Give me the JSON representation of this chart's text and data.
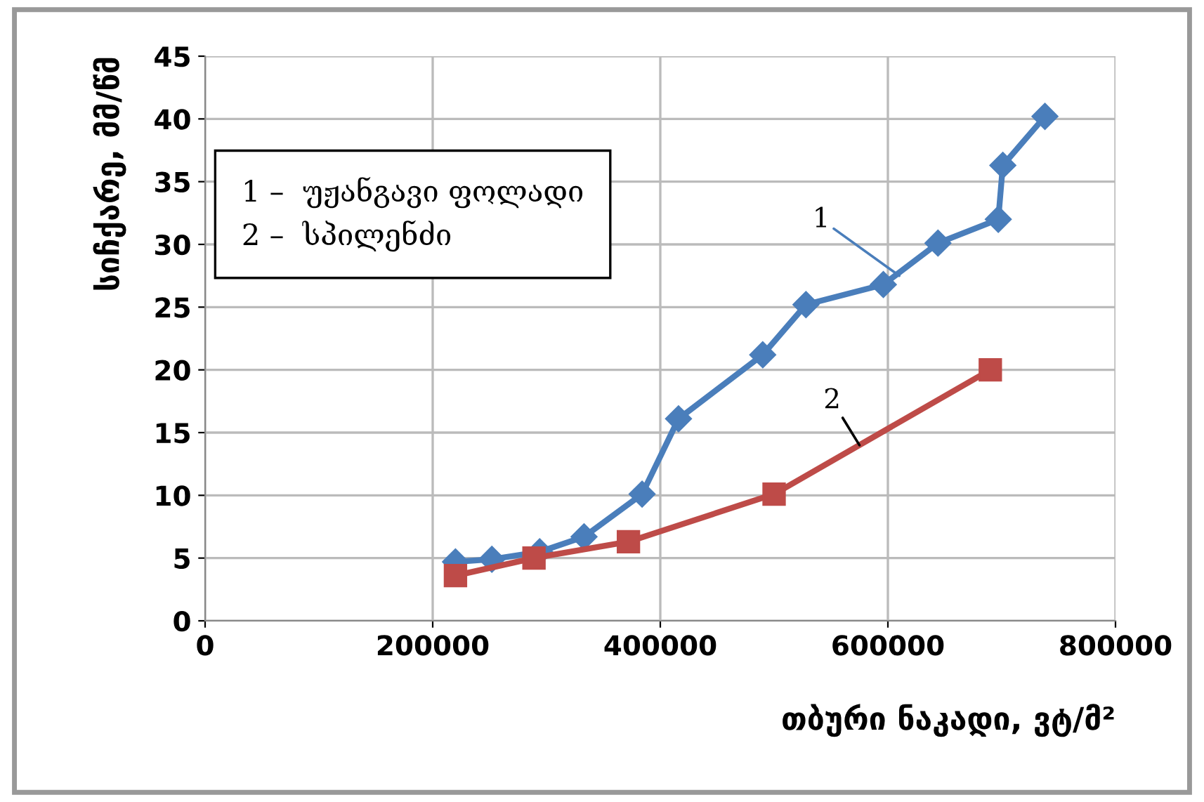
{
  "chart_data": {
    "type": "line",
    "xlabel": "თბური ნაკადი, ვტ/მ²",
    "ylabel": "სიჩქარე, მმ/წმ",
    "annotations": [
      "1 –  უჟანგავი ფოლადი\n2 –  სპილენძი",
      {
        "text": "1",
        "x": 610000,
        "y": 27.5
      },
      {
        "text": "2",
        "x": 575000,
        "y": 14.0
      }
    ],
    "series": [
      {
        "color": "#4a7ebb",
        "marker": "diamond",
        "x": [
          220000,
          252000,
          294000,
          333000,
          384000,
          416000,
          490000,
          528000,
          596000,
          644000,
          697000,
          701000,
          738000
        ],
        "values": [
          4.7,
          4.9,
          5.5,
          6.7,
          10.1,
          16.1,
          21.2,
          25.2,
          26.8,
          30.1,
          32.0,
          36.3,
          40.2
        ]
      },
      {
        "color": "#be4b48",
        "marker": "square",
        "x": [
          220000,
          289000,
          372000,
          500000,
          690000
        ],
        "values": [
          3.6,
          5.0,
          6.3,
          10.1,
          20.0
        ]
      }
    ],
    "xlim": [
      0,
      800000
    ],
    "xticks": [
      0,
      200000,
      400000,
      600000,
      800000
    ],
    "ylim": [
      0,
      45
    ],
    "yticks": [
      0,
      5,
      10,
      15,
      20,
      25,
      30,
      35,
      40,
      45
    ],
    "grid": true,
    "line_style": "solid"
  }
}
